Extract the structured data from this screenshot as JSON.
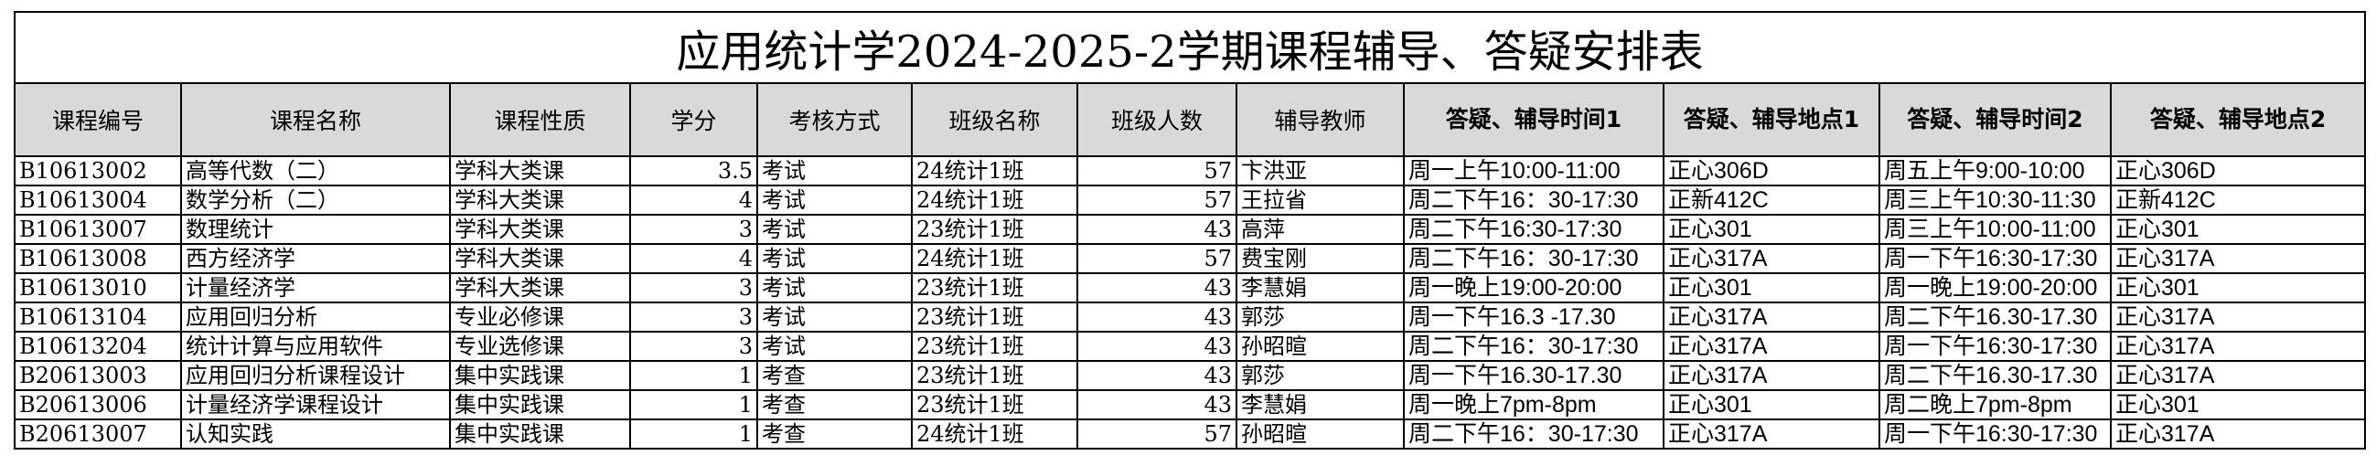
{
  "title": "应用统计学2024-2025-2学期课程辅导、答疑安排表",
  "headers": {
    "course_code": "课程编号",
    "course_name": "课程名称",
    "course_type": "课程性质",
    "credits": "学分",
    "exam_method": "考核方式",
    "class_name": "班级名称",
    "class_size": "班级人数",
    "teacher": "辅导教师",
    "time1": "答疑、辅导时间1",
    "place1": "答疑、辅导地点1",
    "time2": "答疑、辅导时间2",
    "place2": "答疑、辅导地点2"
  },
  "rows": [
    {
      "code": "B10613002",
      "name": "高等代数（二）",
      "type": "学科大类课",
      "credits": "3.5",
      "exam": "考试",
      "class": "24统计1班",
      "size": "57",
      "teacher": "卞洪亚",
      "time1": "周一上午10:00-11:00",
      "place1": "正心306D",
      "time2": "周五上午9:00-10:00",
      "place2": "正心306D"
    },
    {
      "code": "B10613004",
      "name": "数学分析（二）",
      "type": "学科大类课",
      "credits": "4",
      "exam": "考试",
      "class": "24统计1班",
      "size": "57",
      "teacher": "王拉省",
      "time1": "周二下午16：30-17:30",
      "place1": "正新412C",
      "time2": "周三上午10:30-11:30",
      "place2": "正新412C"
    },
    {
      "code": "B10613007",
      "name": "数理统计",
      "type": "学科大类课",
      "credits": "3",
      "exam": "考试",
      "class": "23统计1班",
      "size": "43",
      "teacher": "高萍",
      "time1": "周二下午16:30-17:30",
      "place1": "正心301",
      "time2": "周三上午10:00-11:00",
      "place2": "正心301"
    },
    {
      "code": "B10613008",
      "name": "西方经济学",
      "type": "学科大类课",
      "credits": "4",
      "exam": "考试",
      "class": "24统计1班",
      "size": "57",
      "teacher": "费宝刚",
      "time1": "周二下午16：30-17:30",
      "place1": "正心317A",
      "time2": "周一下午16:30-17:30",
      "place2": "正心317A"
    },
    {
      "code": "B10613010",
      "name": "计量经济学",
      "type": "学科大类课",
      "credits": "3",
      "exam": "考试",
      "class": "23统计1班",
      "size": "43",
      "teacher": "李慧娟",
      "time1": "周一晚上19:00-20:00",
      "place1": "正心301",
      "time2": "周一晚上19:00-20:00",
      "place2": "正心301"
    },
    {
      "code": "B10613104",
      "name": "应用回归分析",
      "type": "专业必修课",
      "credits": "3",
      "exam": "考试",
      "class": "23统计1班",
      "size": "43",
      "teacher": "郭莎",
      "time1": "周一下午16.3 -17.30",
      "place1": "正心317A",
      "time2": "周二下午16.30-17.30",
      "place2": "正心317A"
    },
    {
      "code": "B10613204",
      "name": "统计计算与应用软件",
      "type": "专业选修课",
      "credits": "3",
      "exam": "考试",
      "class": "23统计1班",
      "size": "43",
      "teacher": "孙昭暄",
      "time1": "周二下午16：30-17:30",
      "place1": "正心317A",
      "time2": "周一下午16:30-17:30",
      "place2": "正心317A"
    },
    {
      "code": "B20613003",
      "name": "应用回归分析课程设计",
      "type": "集中实践课",
      "credits": "1",
      "exam": "考查",
      "class": "23统计1班",
      "size": "43",
      "teacher": "郭莎",
      "time1": "周一下午16.30-17.30",
      "place1": "正心317A",
      "time2": "周二下午16.30-17.30",
      "place2": "正心317A"
    },
    {
      "code": "B20613006",
      "name": "计量经济学课程设计",
      "type": "集中实践课",
      "credits": "1",
      "exam": "考查",
      "class": "23统计1班",
      "size": "43",
      "teacher": "李慧娟",
      "time1": "周一晚上7pm-8pm",
      "place1": "正心301",
      "time2": "周二晚上7pm-8pm",
      "place2": "正心301"
    },
    {
      "code": "B20613007",
      "name": "认知实践",
      "type": "集中实践课",
      "credits": "1",
      "exam": "考查",
      "class": "24统计1班",
      "size": "57",
      "teacher": "孙昭暄",
      "time1": "周二下午16：30-17:30",
      "place1": "正心317A",
      "time2": "周一下午16:30-17:30",
      "place2": "正心317A"
    }
  ]
}
